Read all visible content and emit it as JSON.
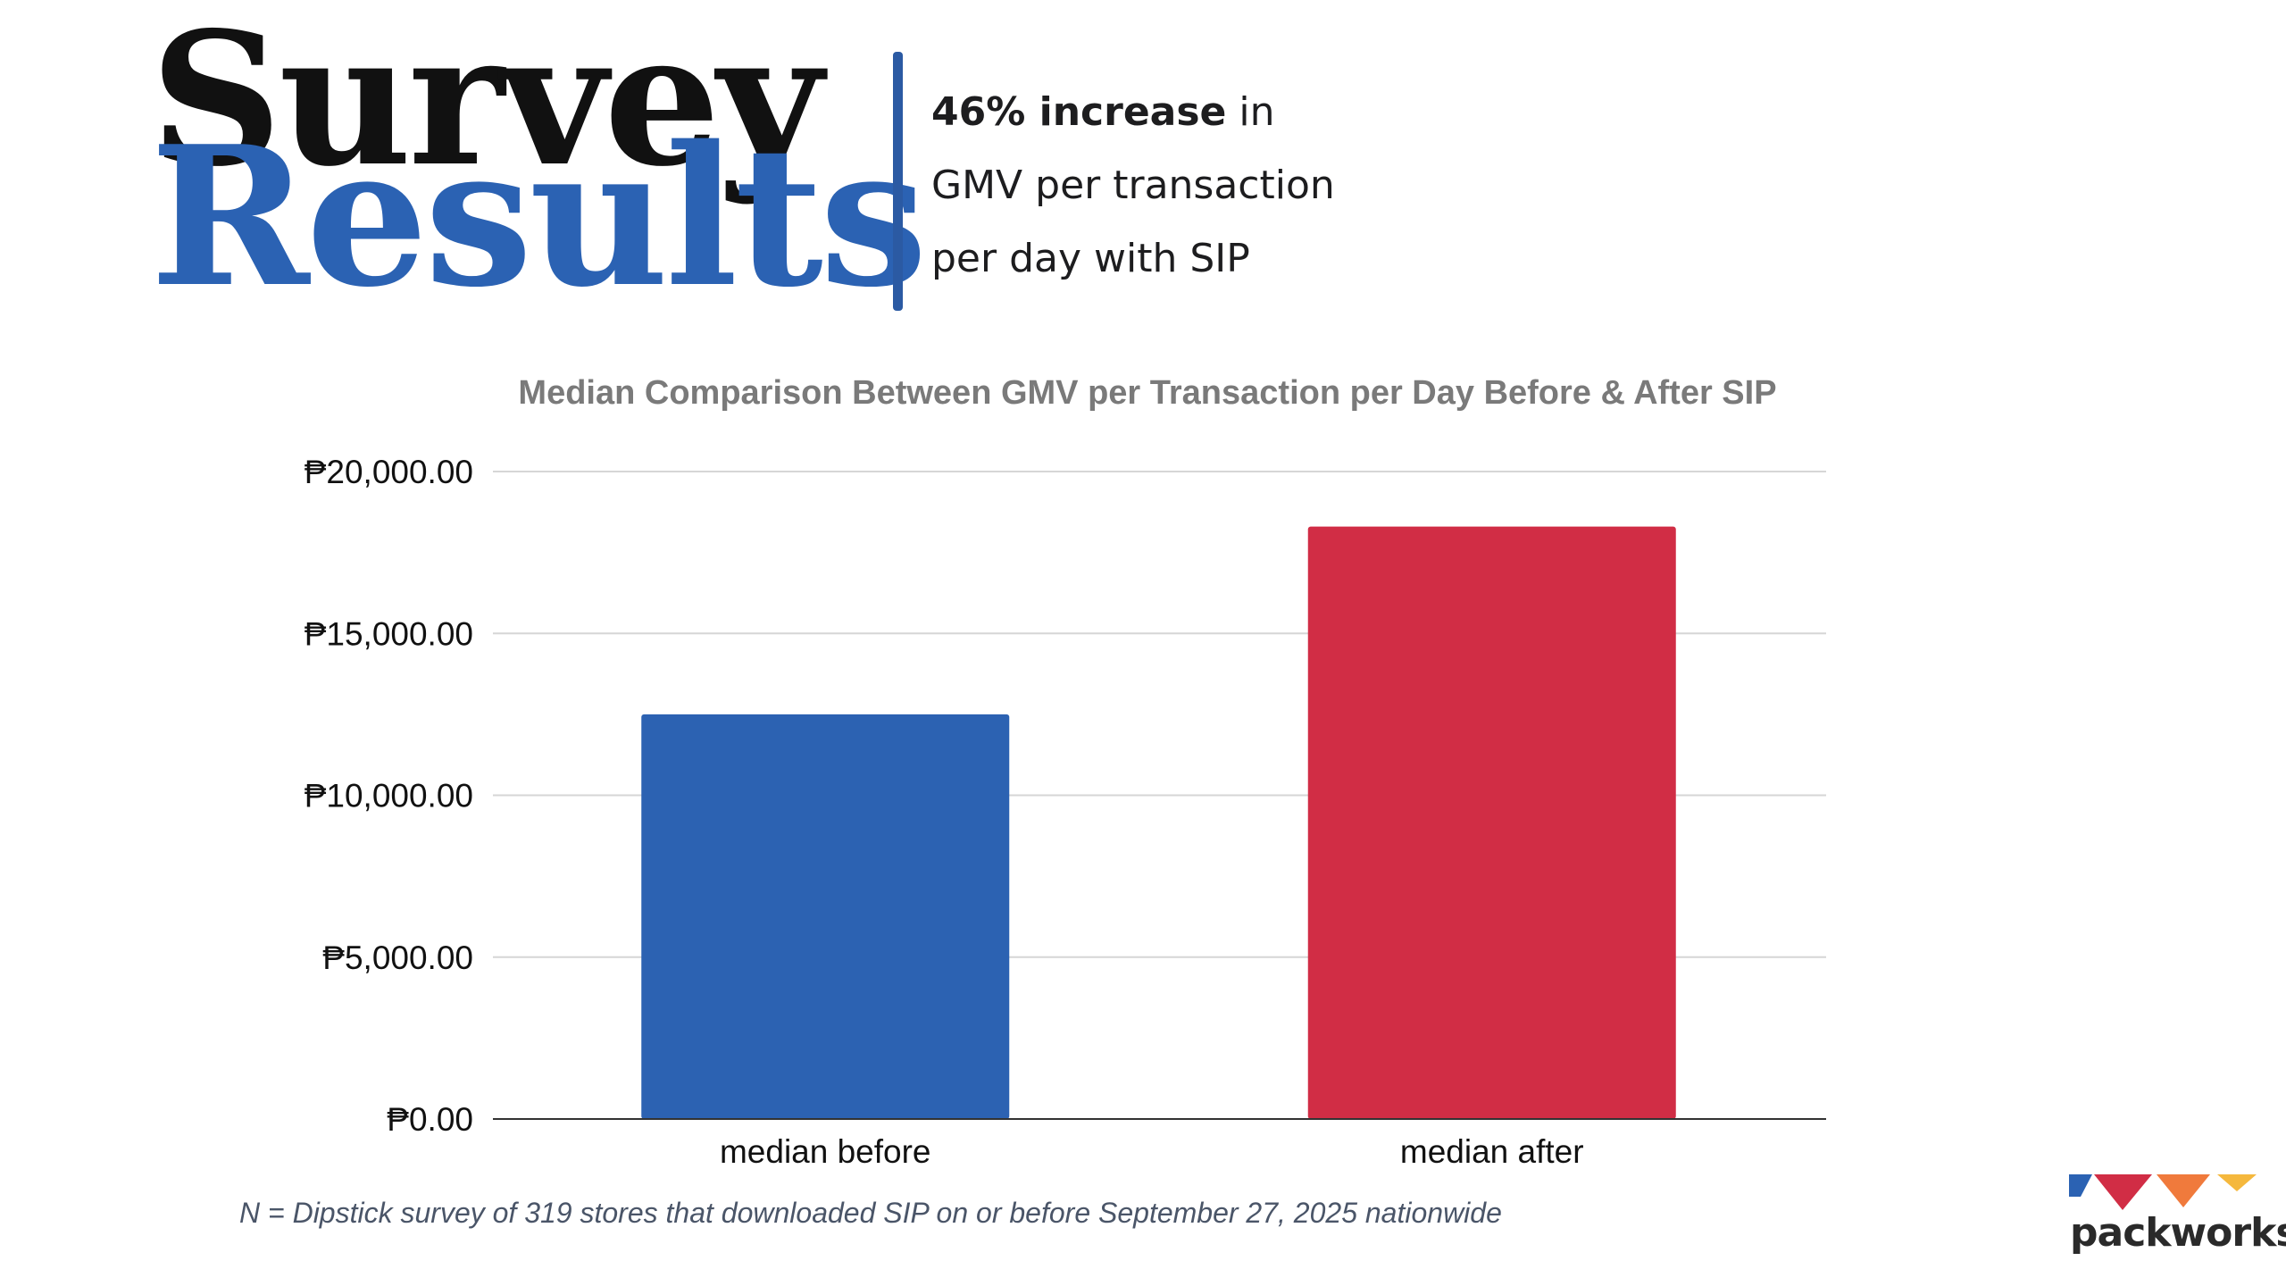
{
  "header": {
    "title_line1": "Survey",
    "title_line2": "Results",
    "stat": {
      "bold_text": "46% increase",
      "line1_rest": " in",
      "line2": "GMV per transaction",
      "line3": "per day with SIP"
    }
  },
  "colors": {
    "title_dark": "#111111",
    "title_blue": "#2b62b3",
    "divider": "#2b5aa3",
    "bar_before": "#2c62b2",
    "bar_after": "#d12d45"
  },
  "chart_data": {
    "type": "bar",
    "title": "Median Comparison Between GMV per Transaction per Day Before & After SIP",
    "categories": [
      "median before",
      "median after"
    ],
    "values": [
      12500,
      18300
    ],
    "colors": [
      "#2c62b2",
      "#d12d45"
    ],
    "ylim": [
      0,
      20000
    ],
    "yticks": [
      0,
      5000,
      10000,
      15000,
      20000
    ],
    "ytick_labels": [
      "₱0.00",
      "₱5,000.00",
      "₱10,000.00",
      "₱15,000.00",
      "₱20,000.00"
    ],
    "xlabel": "",
    "ylabel": "",
    "grid": true
  },
  "footnote": "N = Dipstick survey of 319 stores that downloaded SIP on or before September 27, 2025 nationwide",
  "logo": {
    "wordmark": "packworks",
    "colors": [
      "#2b62b3",
      "#d12d45",
      "#f07a3c",
      "#f5b83d"
    ]
  }
}
